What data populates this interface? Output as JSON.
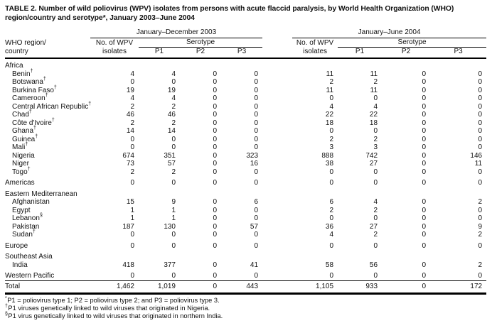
{
  "title": {
    "line1": "TABLE 2. Number of wild poliovirus (WPV) isolates from persons with acute flaccid paralysis, by World Health Organization (WHO)",
    "line2": "region/country and serotype*, January 2003–June 2004"
  },
  "header": {
    "region_line1": "WHO region/",
    "region_line2": "country",
    "groups": [
      {
        "label": "January–December 2003"
      },
      {
        "label": "January–June 2004"
      }
    ],
    "isolates_line1": "No. of WPV",
    "isolates_line2": "isolates",
    "serotype": "Serotype",
    "p1": "P1",
    "p2": "P2",
    "p3": "P3"
  },
  "rows": [
    {
      "type": "section",
      "label": "Africa",
      "marker": "",
      "values": null
    },
    {
      "type": "country",
      "label": "Benin",
      "marker": "†",
      "values": [
        "4",
        "4",
        "0",
        "0",
        "11",
        "11",
        "0",
        "0"
      ]
    },
    {
      "type": "country",
      "label": "Botswana",
      "marker": "†",
      "values": [
        "0",
        "0",
        "0",
        "0",
        "2",
        "2",
        "0",
        "0"
      ]
    },
    {
      "type": "country",
      "label": "Burkina Faso",
      "marker": "†",
      "values": [
        "19",
        "19",
        "0",
        "0",
        "11",
        "11",
        "0",
        "0"
      ]
    },
    {
      "type": "country",
      "label": "Cameroon",
      "marker": "†",
      "values": [
        "4",
        "4",
        "0",
        "0",
        "0",
        "0",
        "0",
        "0"
      ]
    },
    {
      "type": "country",
      "label": "Central African Republic",
      "marker": "†",
      "values": [
        "2",
        "2",
        "0",
        "0",
        "4",
        "4",
        "0",
        "0"
      ]
    },
    {
      "type": "country",
      "label": "Chad",
      "marker": "†",
      "values": [
        "46",
        "46",
        "0",
        "0",
        "22",
        "22",
        "0",
        "0"
      ]
    },
    {
      "type": "country",
      "label": "Côte d'Ivoire",
      "marker": "†",
      "values": [
        "2",
        "2",
        "0",
        "0",
        "18",
        "18",
        "0",
        "0"
      ]
    },
    {
      "type": "country",
      "label": "Ghana",
      "marker": "†",
      "values": [
        "14",
        "14",
        "0",
        "0",
        "0",
        "0",
        "0",
        "0"
      ]
    },
    {
      "type": "country",
      "label": "Guinea",
      "marker": "†",
      "values": [
        "0",
        "0",
        "0",
        "0",
        "2",
        "2",
        "0",
        "0"
      ]
    },
    {
      "type": "country",
      "label": "Mali",
      "marker": "†",
      "values": [
        "0",
        "0",
        "0",
        "0",
        "3",
        "3",
        "0",
        "0"
      ]
    },
    {
      "type": "country",
      "label": "Nigeria",
      "marker": "",
      "values": [
        "674",
        "351",
        "0",
        "323",
        "888",
        "742",
        "0",
        "146"
      ]
    },
    {
      "type": "country",
      "label": "Niger",
      "marker": "",
      "values": [
        "73",
        "57",
        "0",
        "16",
        "38",
        "27",
        "0",
        "11"
      ]
    },
    {
      "type": "country",
      "label": "Togo",
      "marker": "†",
      "values": [
        "2",
        "2",
        "0",
        "0",
        "0",
        "0",
        "0",
        "0"
      ]
    },
    {
      "type": "region",
      "label": "Americas",
      "marker": "",
      "values": [
        "0",
        "0",
        "0",
        "0",
        "0",
        "0",
        "0",
        "0"
      ]
    },
    {
      "type": "section",
      "label": "Eastern Mediterranean",
      "marker": "",
      "values": null
    },
    {
      "type": "country",
      "label": "Afghanistan",
      "marker": "",
      "values": [
        "15",
        "9",
        "0",
        "6",
        "6",
        "4",
        "0",
        "2"
      ]
    },
    {
      "type": "country",
      "label": "Egypt",
      "marker": "",
      "values": [
        "1",
        "1",
        "0",
        "0",
        "2",
        "2",
        "0",
        "0"
      ]
    },
    {
      "type": "country",
      "label": "Lebanon",
      "marker": "§",
      "values": [
        "1",
        "1",
        "0",
        "0",
        "0",
        "0",
        "0",
        "0"
      ]
    },
    {
      "type": "country",
      "label": "Pakistan",
      "marker": "",
      "values": [
        "187",
        "130",
        "0",
        "57",
        "36",
        "27",
        "0",
        "9"
      ]
    },
    {
      "type": "country",
      "label": "Sudan",
      "marker": "†",
      "values": [
        "0",
        "0",
        "0",
        "0",
        "4",
        "2",
        "0",
        "2"
      ]
    },
    {
      "type": "region",
      "label": "Europe",
      "marker": "",
      "values": [
        "0",
        "0",
        "0",
        "0",
        "0",
        "0",
        "0",
        "0"
      ]
    },
    {
      "type": "section",
      "label": "Southeast Asia",
      "marker": "",
      "values": null
    },
    {
      "type": "country",
      "label": "India",
      "marker": "",
      "values": [
        "418",
        "377",
        "0",
        "41",
        "58",
        "56",
        "0",
        "2"
      ]
    },
    {
      "type": "region",
      "label": "Western Pacific",
      "marker": "",
      "values": [
        "0",
        "0",
        "0",
        "0",
        "0",
        "0",
        "0",
        "0"
      ]
    },
    {
      "type": "total",
      "label": "Total",
      "marker": "",
      "values": [
        "1,462",
        "1,019",
        "0",
        "443",
        "1,105",
        "933",
        "0",
        "172"
      ]
    }
  ],
  "footnotes": [
    {
      "marker": "*",
      "text": "P1 = poliovirus type 1; P2 = poliovirus type 2; and P3 = poliovirus type 3."
    },
    {
      "marker": "†",
      "text": "P1 viruses genetically linked to wild viruses that originated in Nigeria."
    },
    {
      "marker": "§",
      "text": "P1 virus genetically linked to wild viruses that originated in northern India."
    }
  ]
}
